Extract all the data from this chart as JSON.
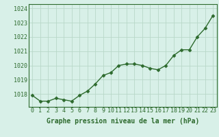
{
  "x": [
    0,
    1,
    2,
    3,
    4,
    5,
    6,
    7,
    8,
    9,
    10,
    11,
    12,
    13,
    14,
    15,
    16,
    17,
    18,
    19,
    20,
    21,
    22,
    23
  ],
  "y": [
    1017.9,
    1017.5,
    1017.5,
    1017.7,
    1017.6,
    1017.5,
    1017.9,
    1018.2,
    1018.7,
    1019.3,
    1019.5,
    1020.0,
    1020.1,
    1020.1,
    1020.0,
    1019.8,
    1019.7,
    1020.0,
    1020.7,
    1021.1,
    1021.1,
    1022.0,
    1022.6,
    1023.5
  ],
  "line_color": "#2d6a2d",
  "marker": "D",
  "marker_size": 2.5,
  "line_width": 1.0,
  "background_color": "#d8f0e8",
  "grid_color": "#b8d8c8",
  "ylabel_ticks": [
    1018,
    1019,
    1020,
    1021,
    1022,
    1023,
    1024
  ],
  "xlabel_label": "Graphe pression niveau de la mer (hPa)",
  "ylim": [
    1017.1,
    1024.3
  ],
  "xlim": [
    -0.5,
    23.5
  ],
  "label_fontsize": 7,
  "tick_fontsize": 6
}
